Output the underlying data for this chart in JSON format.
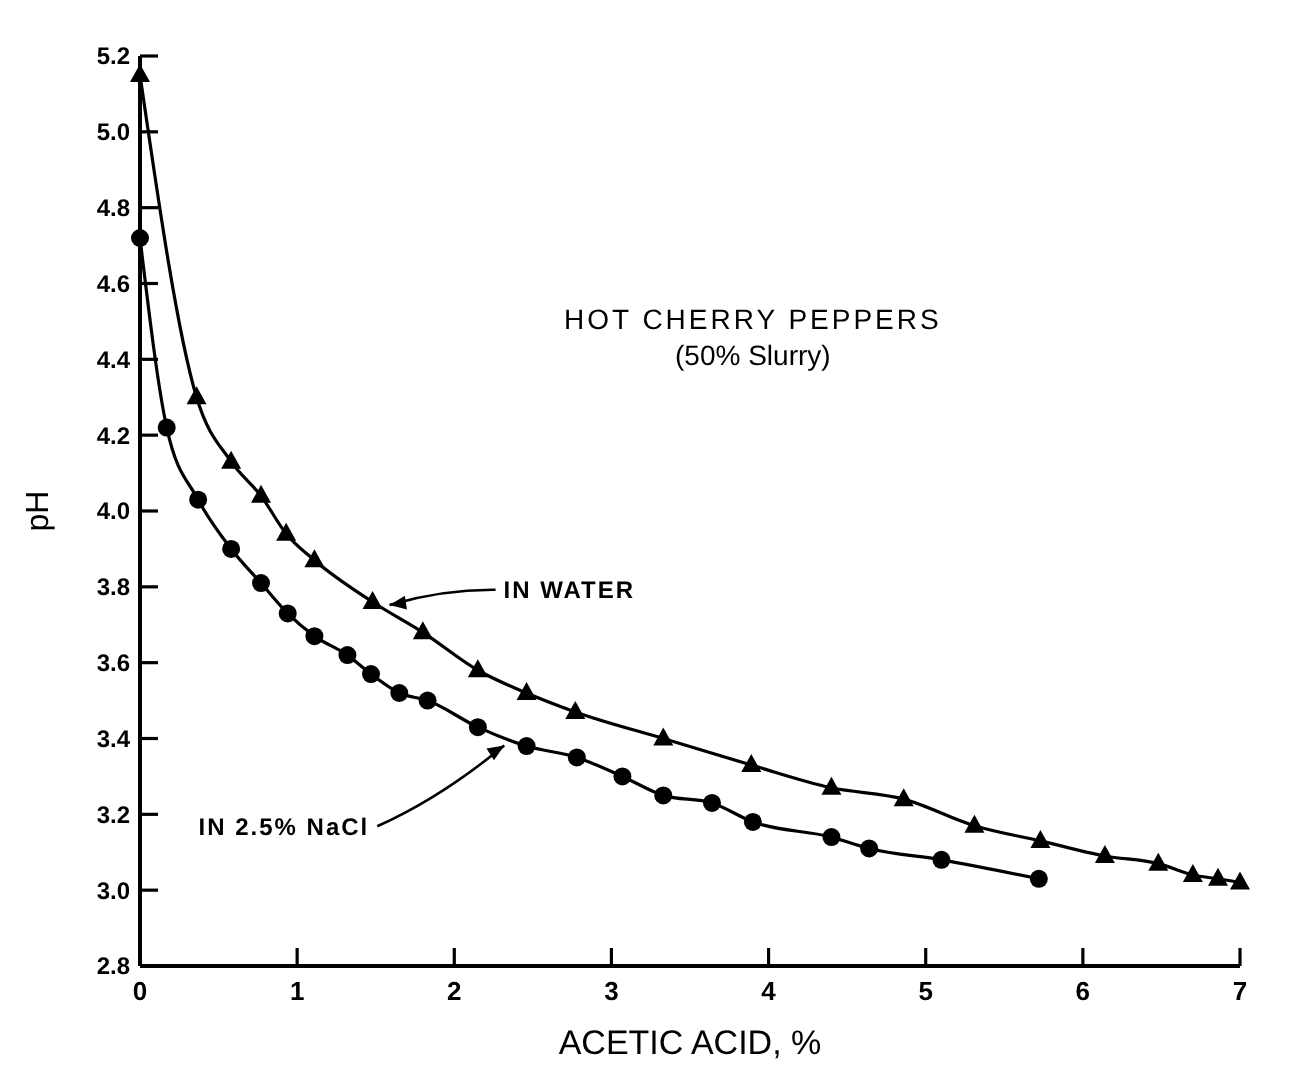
{
  "chart_data": {
    "type": "line",
    "title": "HOT CHERRY PEPPERS",
    "subtitle": "(50% Slurry)",
    "xlabel": "ACETIC  ACID, %",
    "ylabel": "pH",
    "xlim": [
      0,
      7
    ],
    "xticks": [
      0,
      1,
      2,
      3,
      4,
      5,
      6,
      7
    ],
    "ylim": [
      2.8,
      5.2
    ],
    "yticks": [
      2.8,
      {
        "value": 3.0,
        "label": "3.0"
      },
      3.2,
      3.4,
      3.6,
      3.8,
      {
        "value": 4.0,
        "label": "4.0"
      },
      4.2,
      4.4,
      4.6,
      4.8,
      {
        "value": 5.0,
        "label": "5.0"
      },
      5.2
    ],
    "grid": false,
    "series": [
      {
        "color": "#000000",
        "marker": "triangle",
        "x": [
          0,
          0.36,
          0.58,
          0.77,
          0.93,
          1.11,
          1.48,
          1.8,
          2.15,
          2.46,
          2.77,
          3.33,
          3.89,
          4.4,
          4.86,
          5.31,
          5.73,
          6.14,
          6.48,
          6.7,
          6.86,
          7.0
        ],
        "values": [
          5.15,
          4.3,
          4.13,
          4.04,
          3.94,
          3.87,
          3.76,
          3.68,
          3.58,
          3.52,
          3.47,
          3.4,
          3.33,
          3.27,
          3.24,
          3.17,
          3.13,
          3.09,
          3.07,
          3.04,
          3.03,
          3.02
        ]
      },
      {
        "color": "#000000",
        "marker": "circle",
        "x": [
          0,
          0.17,
          0.37,
          0.58,
          0.77,
          0.94,
          1.11,
          1.32,
          1.47,
          1.65,
          1.83,
          2.15,
          2.46,
          2.78,
          3.07,
          3.33,
          3.64,
          3.9,
          4.4,
          4.64,
          5.1,
          5.72
        ],
        "values": [
          4.72,
          4.22,
          4.03,
          3.9,
          3.81,
          3.73,
          3.67,
          3.62,
          3.57,
          3.52,
          3.5,
          3.43,
          3.38,
          3.35,
          3.3,
          3.25,
          3.23,
          3.18,
          3.14,
          3.11,
          3.08,
          3.03
        ]
      }
    ],
    "annotations": [
      {
        "text": "IN  WATER",
        "x": 1.55,
        "y": 3.75
      },
      {
        "text": "IN 2.5% NaCl",
        "x": 2.35,
        "y": 3.39
      }
    ]
  }
}
